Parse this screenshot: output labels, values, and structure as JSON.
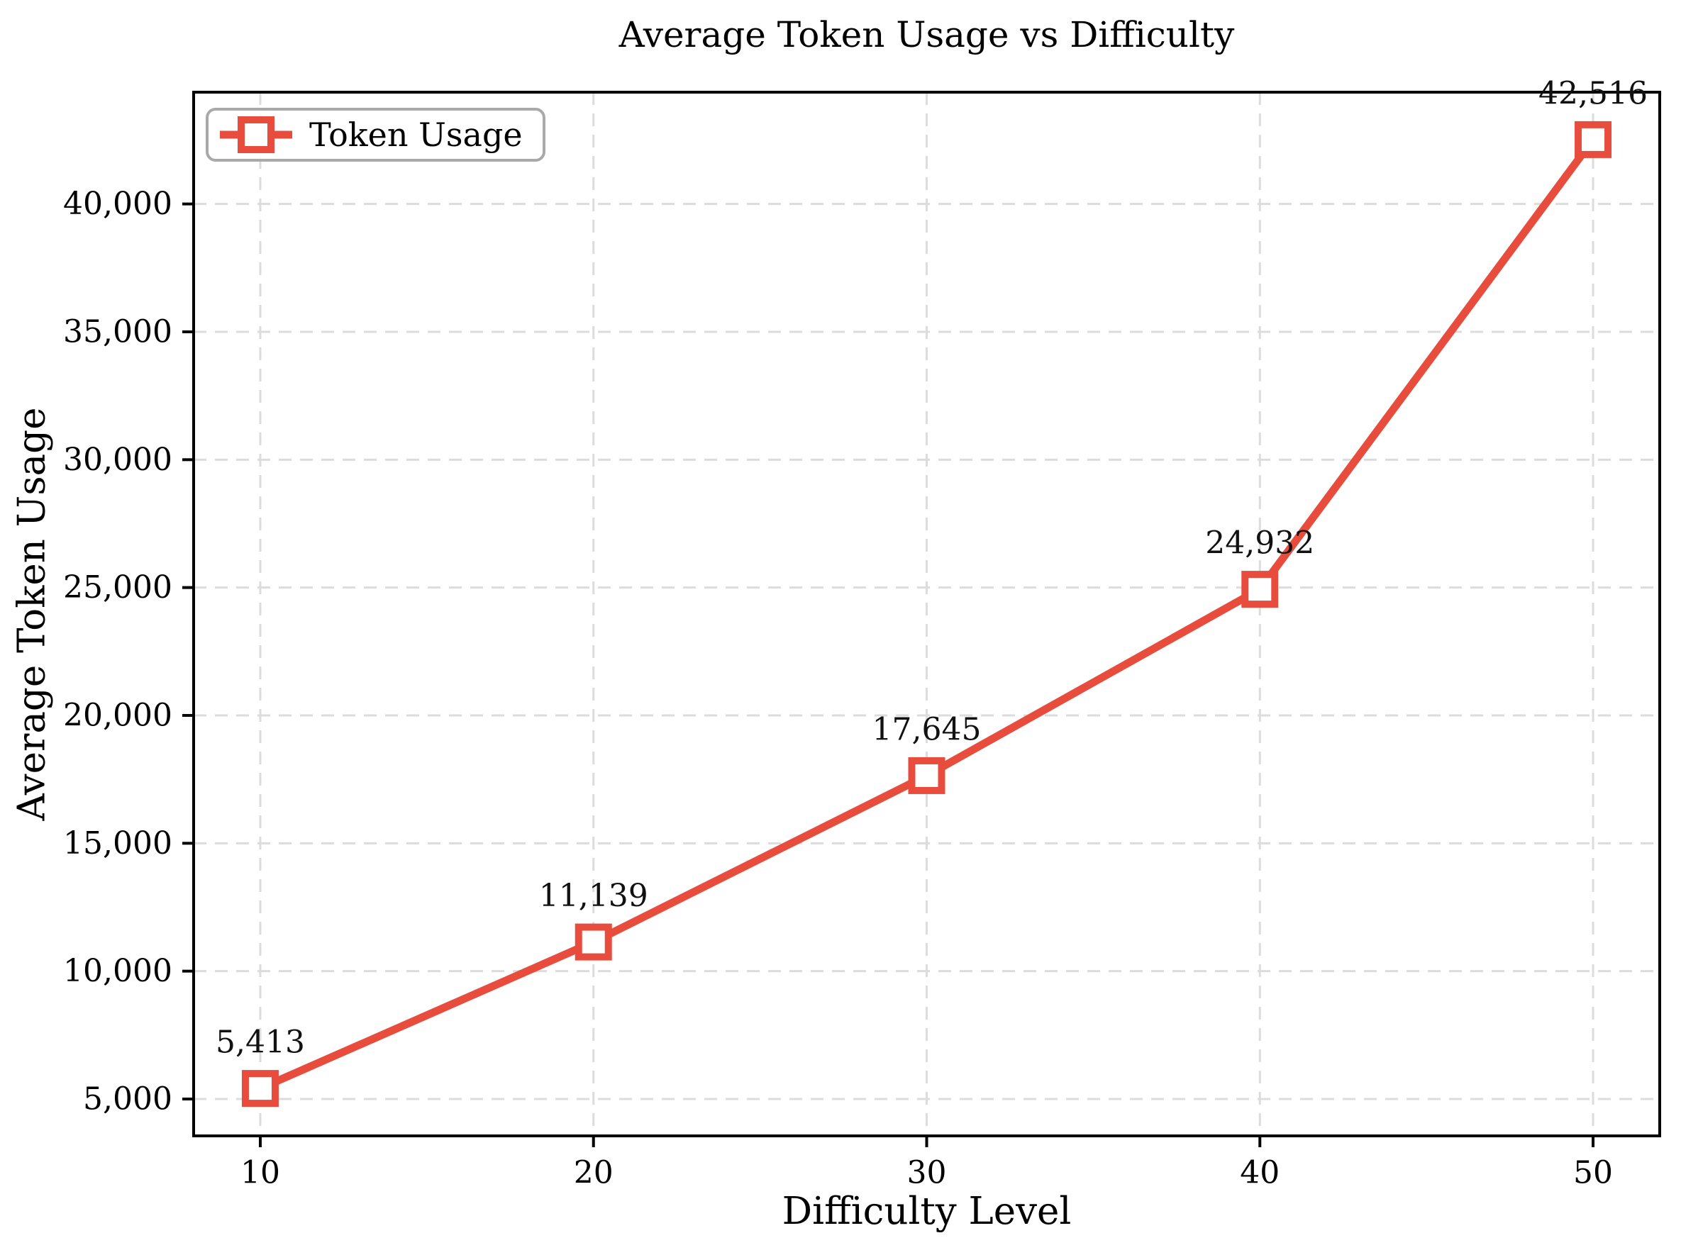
{
  "chart_data": {
    "type": "line",
    "title": "Average Token Usage vs Difficulty",
    "xlabel": "Difficulty Level",
    "ylabel": "Average Token Usage",
    "legend": {
      "label": "Token Usage",
      "position": "upper-left"
    },
    "x": [
      10,
      20,
      30,
      40,
      50
    ],
    "series": [
      {
        "name": "Token Usage",
        "values": [
          5413,
          11139,
          17645,
          24932,
          42516
        ]
      }
    ],
    "point_labels": [
      "5,413",
      "11,139",
      "17,645",
      "24,932",
      "42,516"
    ],
    "xlim": [
      8,
      52
    ],
    "ylim": [
      3558,
      44371
    ],
    "xticks": {
      "values": [
        10,
        20,
        30,
        40,
        50
      ],
      "labels": [
        "10",
        "20",
        "30",
        "40",
        "50"
      ]
    },
    "yticks": {
      "values": [
        5000,
        10000,
        15000,
        20000,
        25000,
        30000,
        35000,
        40000
      ],
      "labels": [
        "5,000",
        "10,000",
        "15,000",
        "20,000",
        "25,000",
        "30,000",
        "35,000",
        "40,000"
      ]
    },
    "grid": true,
    "marker": "open-square",
    "colors": {
      "line": "#E74C3C",
      "marker_fill": "#FFFFFF",
      "grid": "#DCDCDC",
      "axis": "#000000",
      "legend_border": "#A9A9A9",
      "background": "#FFFFFF",
      "text": "#000000"
    }
  }
}
